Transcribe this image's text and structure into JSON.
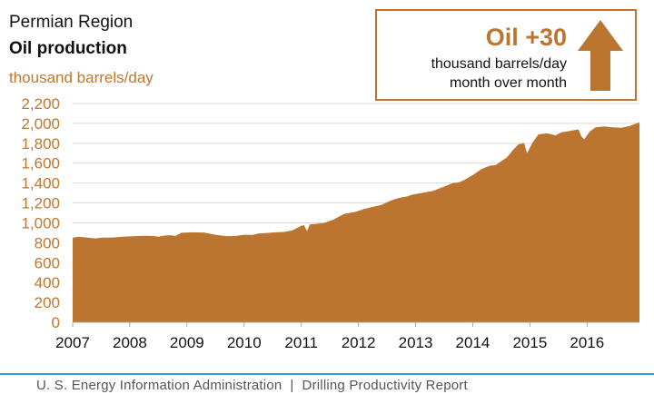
{
  "header": {
    "region": "Permian Region",
    "title": "Oil production",
    "unit": "thousand barrels/day"
  },
  "callout": {
    "headline": "Oil +30",
    "line1": "thousand barrels/day",
    "line2": "month over month",
    "icon": "arrow-up-icon"
  },
  "footer": {
    "source": "U. S. Energy Information Administration",
    "separator": "|",
    "report": "Drilling Productivity Report"
  },
  "colors": {
    "area": "#bc7531",
    "tick_labels": "#c0772f",
    "grid": "#d9d9d9",
    "footer_rule": "#2e9fd5"
  },
  "chart_data": {
    "type": "area",
    "ylim": [
      0,
      2200
    ],
    "xlim": [
      2007.0,
      2016.917
    ],
    "yticks": [
      0,
      200,
      400,
      600,
      800,
      1000,
      1200,
      1400,
      1600,
      1800,
      2000,
      2200
    ],
    "ytick_labels": [
      "0",
      "200",
      "400",
      "600",
      "800",
      "1,000",
      "1,200",
      "1,400",
      "1,600",
      "1,800",
      "2,000",
      "2,200"
    ],
    "xticks": [
      2007,
      2008,
      2009,
      2010,
      2011,
      2012,
      2013,
      2014,
      2015,
      2016
    ],
    "xtick_labels": [
      "2007",
      "2008",
      "2009",
      "2010",
      "2011",
      "2012",
      "2013",
      "2014",
      "2015",
      "2016"
    ],
    "grid": "horizontal",
    "series": [
      {
        "values": [
          [
            2007.0,
            850
          ],
          [
            2007.1,
            860
          ],
          [
            2007.25,
            853
          ],
          [
            2007.4,
            843
          ],
          [
            2007.5,
            852
          ],
          [
            2007.7,
            853
          ],
          [
            2007.9,
            862
          ],
          [
            2008.1,
            866
          ],
          [
            2008.25,
            870
          ],
          [
            2008.4,
            868
          ],
          [
            2008.5,
            860
          ],
          [
            2008.6,
            872
          ],
          [
            2008.7,
            875
          ],
          [
            2008.8,
            868
          ],
          [
            2008.9,
            900
          ],
          [
            2009.1,
            905
          ],
          [
            2009.3,
            903
          ],
          [
            2009.5,
            880
          ],
          [
            2009.7,
            865
          ],
          [
            2009.85,
            868
          ],
          [
            2010.0,
            880
          ],
          [
            2010.15,
            878
          ],
          [
            2010.25,
            893
          ],
          [
            2010.4,
            898
          ],
          [
            2010.55,
            905
          ],
          [
            2010.7,
            908
          ],
          [
            2010.85,
            926
          ],
          [
            2011.0,
            970
          ],
          [
            2011.05,
            976
          ],
          [
            2011.1,
            917
          ],
          [
            2011.15,
            985
          ],
          [
            2011.25,
            990
          ],
          [
            2011.4,
            1000
          ],
          [
            2011.55,
            1030
          ],
          [
            2011.65,
            1060
          ],
          [
            2011.75,
            1090
          ],
          [
            2011.85,
            1100
          ],
          [
            2011.95,
            1110
          ],
          [
            2012.1,
            1140
          ],
          [
            2012.25,
            1160
          ],
          [
            2012.4,
            1180
          ],
          [
            2012.55,
            1220
          ],
          [
            2012.7,
            1250
          ],
          [
            2012.85,
            1265
          ],
          [
            2012.95,
            1285
          ],
          [
            2013.1,
            1300
          ],
          [
            2013.3,
            1320
          ],
          [
            2013.5,
            1365
          ],
          [
            2013.65,
            1400
          ],
          [
            2013.75,
            1405
          ],
          [
            2013.85,
            1430
          ],
          [
            2014.0,
            1480
          ],
          [
            2014.15,
            1540
          ],
          [
            2014.3,
            1575
          ],
          [
            2014.4,
            1580
          ],
          [
            2014.5,
            1620
          ],
          [
            2014.6,
            1660
          ],
          [
            2014.7,
            1730
          ],
          [
            2014.8,
            1790
          ],
          [
            2014.9,
            1800
          ],
          [
            2014.95,
            1700
          ],
          [
            2015.05,
            1810
          ],
          [
            2015.15,
            1890
          ],
          [
            2015.3,
            1900
          ],
          [
            2015.45,
            1880
          ],
          [
            2015.55,
            1910
          ],
          [
            2015.65,
            1920
          ],
          [
            2015.75,
            1930
          ],
          [
            2015.85,
            1940
          ],
          [
            2015.9,
            1870
          ],
          [
            2015.95,
            1840
          ],
          [
            2016.05,
            1920
          ],
          [
            2016.15,
            1960
          ],
          [
            2016.3,
            1970
          ],
          [
            2016.45,
            1960
          ],
          [
            2016.6,
            1955
          ],
          [
            2016.75,
            1975
          ],
          [
            2016.917,
            2010
          ]
        ]
      }
    ]
  }
}
